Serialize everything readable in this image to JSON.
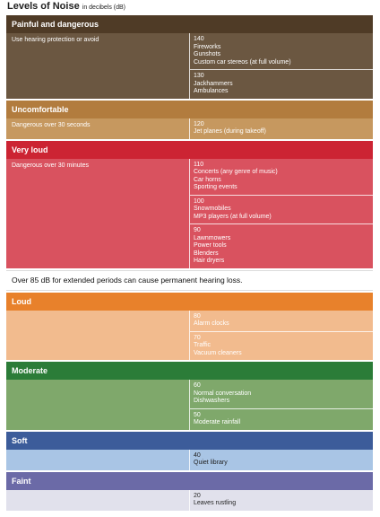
{
  "header": {
    "title": "Levels of Noise",
    "subtitle": "in decibels (dB)"
  },
  "sections": [
    {
      "title": "Painful and dangerous",
      "note": "Use hearing protection or avoid",
      "colors": [
        "#4f3b26",
        "#6b5741"
      ],
      "levels": [
        {
          "db": 140,
          "sources": [
            "Fireworks",
            "Gunshots",
            "Custom car stereos (at full volume)"
          ]
        },
        {
          "db": 130,
          "sources": [
            "Jackhammers",
            "Ambulances"
          ]
        }
      ]
    },
    {
      "title": "Uncomfortable",
      "note": "Dangerous over 30 seconds",
      "colors": [
        "#b27c3e",
        "#c6985f"
      ],
      "levels": [
        {
          "db": 120,
          "sources": [
            "Jet planes (during takeoff)"
          ]
        }
      ]
    },
    {
      "title": "Very loud",
      "note": "Dangerous over 30 minutes",
      "colors": [
        "#cc2433",
        "#d9525f"
      ],
      "levels": [
        {
          "db": 110,
          "sources": [
            "Concerts (any genre of music)",
            "Car horns",
            "Sporting events"
          ]
        },
        {
          "db": 100,
          "sources": [
            "Snowmobiles",
            "MP3 players (at full volume)"
          ]
        },
        {
          "db": 90,
          "sources": [
            "Lawnmowers",
            "Power tools",
            "Blenders",
            "Hair dryers"
          ]
        }
      ]
    },
    {
      "title": "Loud",
      "colors": [
        "#e8812b",
        "#f2bb8e"
      ],
      "levels": [
        {
          "db": 80,
          "sources": [
            "Alarm clocks"
          ]
        },
        {
          "db": 70,
          "sources": [
            "Traffic",
            "Vacuum cleaners"
          ]
        }
      ]
    },
    {
      "title": "Moderate",
      "colors": [
        "#2b7c38",
        "#7fa86b"
      ],
      "levels": [
        {
          "db": 60,
          "sources": [
            "Normal conversation",
            "Dishwashers"
          ]
        },
        {
          "db": 50,
          "sources": [
            "Moderate rainfall"
          ]
        }
      ]
    },
    {
      "title": "Soft",
      "colors": [
        "#3c5c9a",
        "#a9c5e5"
      ],
      "levels": [
        {
          "db": 40,
          "sources": [
            "Quiet library"
          ]
        }
      ]
    },
    {
      "title": "Faint",
      "colors": [
        "#6b6aa7",
        "#e1e1ec"
      ],
      "levels": [
        {
          "db": 20,
          "sources": [
            "Leaves rustling"
          ]
        }
      ]
    }
  ],
  "warning": "Over 85 dB for extended periods can cause permanent hearing loss."
}
